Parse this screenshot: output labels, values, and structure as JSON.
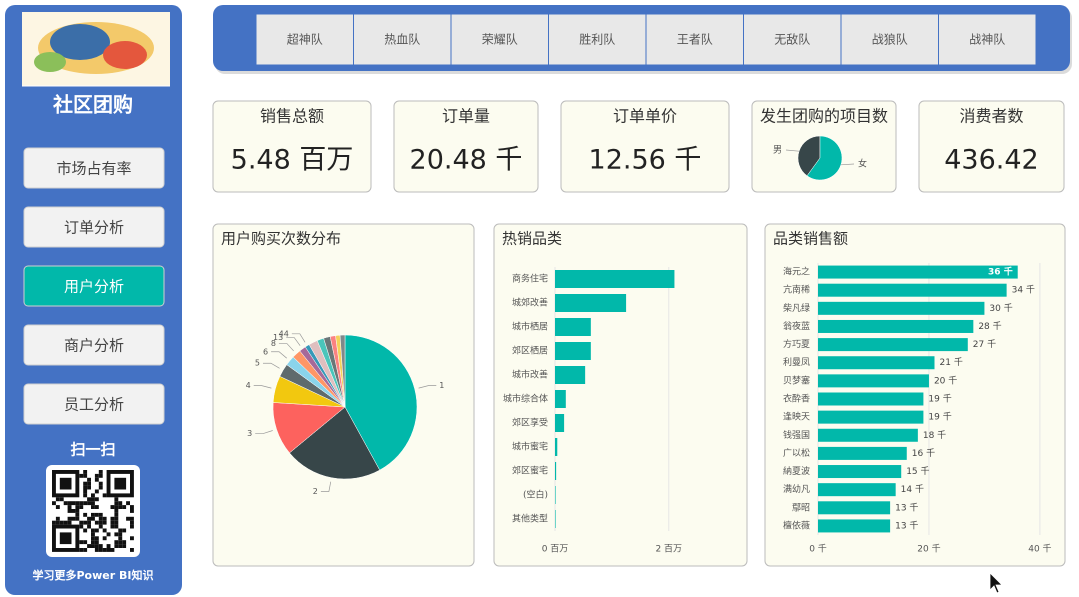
{
  "sidebar": {
    "title": "社区团购",
    "menu": [
      "市场占有率",
      "订单分析",
      "用户分析",
      "商户分析",
      "员工分析"
    ],
    "active": 2,
    "scan": "扫一扫",
    "footer": "学习更多Power BI知识"
  },
  "tabs": [
    "超神队",
    "热血队",
    "荣耀队",
    "胜利队",
    "王者队",
    "无敌队",
    "战狼队",
    "战神队"
  ],
  "kpis": [
    {
      "label": "销售总额",
      "value": "5.48 百万"
    },
    {
      "label": "订单量",
      "value": "20.48 千"
    },
    {
      "label": "订单单价",
      "value": "12.56 千"
    },
    {
      "label": "发生团购的项目数"
    },
    {
      "label": "消费者数",
      "value": "436.42"
    }
  ],
  "chart_data": [
    {
      "type": "pie",
      "title": "用户购买次数分布",
      "categories": [
        "1",
        "2",
        "3",
        "4",
        "5",
        "6",
        "8",
        "13",
        "44",
        null,
        null,
        null,
        null,
        null,
        null
      ],
      "values": [
        42,
        22,
        12,
        6,
        3,
        2.2,
        2,
        1.5,
        1,
        2,
        1.5,
        1.5,
        1.2,
        1,
        1.1
      ],
      "colors": [
        "#01b8aa",
        "#374649",
        "#fd625e",
        "#f2c80f",
        "#5f6b6d",
        "#8ad4eb",
        "#fe9666",
        "#a66999",
        "#3599b8",
        "#dfbfbf",
        "#4ac5bb",
        "#6b7677",
        "#fb8281",
        "#f4d25a",
        "#7f898a"
      ]
    },
    {
      "type": "bar",
      "title": "热销品类",
      "categories": [
        "商务住宅",
        "城郊改善",
        "城市栖居",
        "郊区栖居",
        "城市改善",
        "城市综合体",
        "郊区享受",
        "城市蜜宅",
        "郊区蜜宅",
        "(空白)",
        "其他类型"
      ],
      "values": [
        2.1,
        1.25,
        0.63,
        0.63,
        0.53,
        0.19,
        0.16,
        0.04,
        0.02,
        0.01,
        0.01
      ],
      "color": "#01b8aa",
      "xlim": [
        0,
        3.2
      ],
      "xticks": [
        {
          "value": 0,
          "label": "0 百万"
        },
        {
          "value": 2,
          "label": "2 百万"
        }
      ],
      "grid": true
    },
    {
      "type": "bar",
      "title": "品类销售额",
      "categories": [
        "海元之",
        "亢南稀",
        "柴凡绿",
        "翁夜蓝",
        "方巧夏",
        "利曼凤",
        "贝梦塞",
        "衣酔香",
        "逢映天",
        "钱强国",
        "广以松",
        "納夏波",
        "满幼凡",
        "鄢昭",
        "檀依薇"
      ],
      "values": [
        36,
        34,
        30,
        28,
        27,
        21,
        20,
        19,
        19,
        18,
        16,
        15,
        14,
        13,
        13
      ],
      "value_labels": [
        "36 千",
        "34 千",
        "30 千",
        "28 千",
        "27 千",
        "21 千",
        "20 千",
        "19 千",
        "19 千",
        "18 千",
        "16 千",
        "15 千",
        "14 千",
        "13 千",
        "13 千"
      ],
      "color": "#01b8aa",
      "xlim": [
        0,
        42
      ],
      "xticks": [
        {
          "value": 0,
          "label": "0 千"
        },
        {
          "value": 20,
          "label": "20 千"
        },
        {
          "value": 40,
          "label": "40 千"
        }
      ],
      "grid": true
    },
    {
      "type": "pie",
      "categories": [
        "男",
        "女"
      ],
      "values": [
        40,
        60
      ],
      "colors": [
        "#374649",
        "#01b8aa"
      ]
    }
  ]
}
